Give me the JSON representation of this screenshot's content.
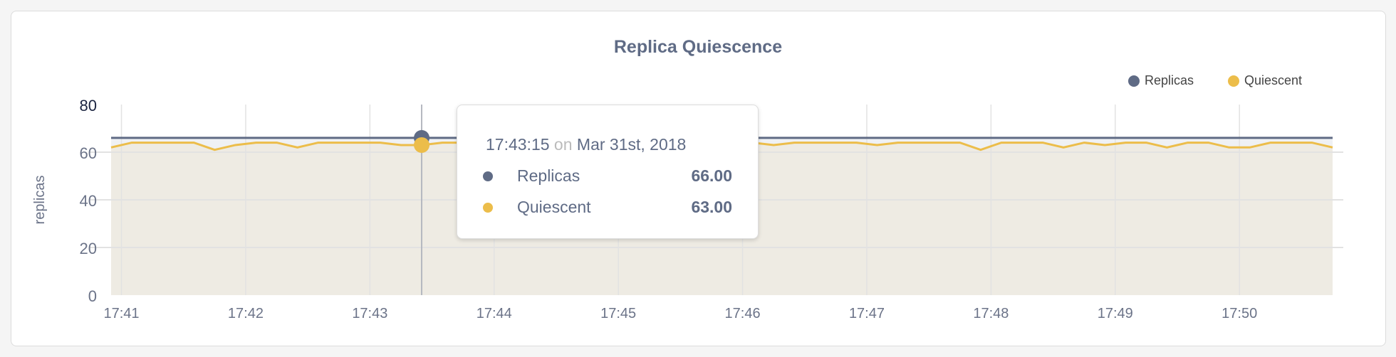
{
  "chart_data": {
    "type": "area",
    "title": "Replica Quiescence",
    "ylabel": "replicas",
    "xlabel": "",
    "ylim": [
      0,
      80
    ],
    "yticks": [
      "0",
      "20",
      "40",
      "60",
      "80"
    ],
    "xlim": [
      "17:40:55",
      "17:50:45"
    ],
    "xticks": [
      "17:41",
      "17:42",
      "17:43",
      "17:44",
      "17:45",
      "17:46",
      "17:47",
      "17:48",
      "17:49",
      "17:50"
    ],
    "x_start": "17:40:55",
    "x_step_seconds": 10,
    "grid": true,
    "legend_position": "top-right",
    "series": [
      {
        "name": "Replicas",
        "color": "#5f6b85",
        "values": [
          66,
          66,
          66,
          66,
          66,
          66,
          66,
          66,
          66,
          66,
          66,
          66,
          66,
          66,
          66,
          66,
          66,
          66,
          66,
          66,
          66,
          66,
          66,
          66,
          66,
          66,
          66,
          66,
          66,
          66,
          66,
          66,
          66,
          66,
          66,
          66,
          66,
          66,
          66,
          66,
          66,
          66,
          66,
          66,
          66,
          66,
          66,
          66,
          66,
          66,
          66,
          66,
          66,
          66,
          66,
          66,
          66,
          66,
          66,
          66
        ]
      },
      {
        "name": "Quiescent",
        "color": "#ecbd4a",
        "values": [
          62,
          64,
          64,
          64,
          64,
          61,
          63,
          64,
          64,
          62,
          64,
          64,
          64,
          64,
          63,
          63,
          64,
          64,
          63,
          64,
          64,
          64,
          63,
          64,
          64,
          64,
          64,
          63,
          64,
          64,
          64,
          64,
          63,
          64,
          64,
          64,
          64,
          63,
          64,
          64,
          64,
          64,
          61,
          64,
          64,
          64,
          62,
          64,
          63,
          64,
          64,
          62,
          64,
          64,
          62,
          62,
          64,
          64,
          64,
          62
        ]
      }
    ],
    "tooltip": {
      "time": "17:43:15",
      "on": "on",
      "date": "Mar 31st, 2018",
      "rows": [
        {
          "label": "Replicas",
          "value": "66.00",
          "color": "#5f6b85"
        },
        {
          "label": "Quiescent",
          "value": "63.00",
          "color": "#ecbd4a"
        }
      ]
    }
  }
}
